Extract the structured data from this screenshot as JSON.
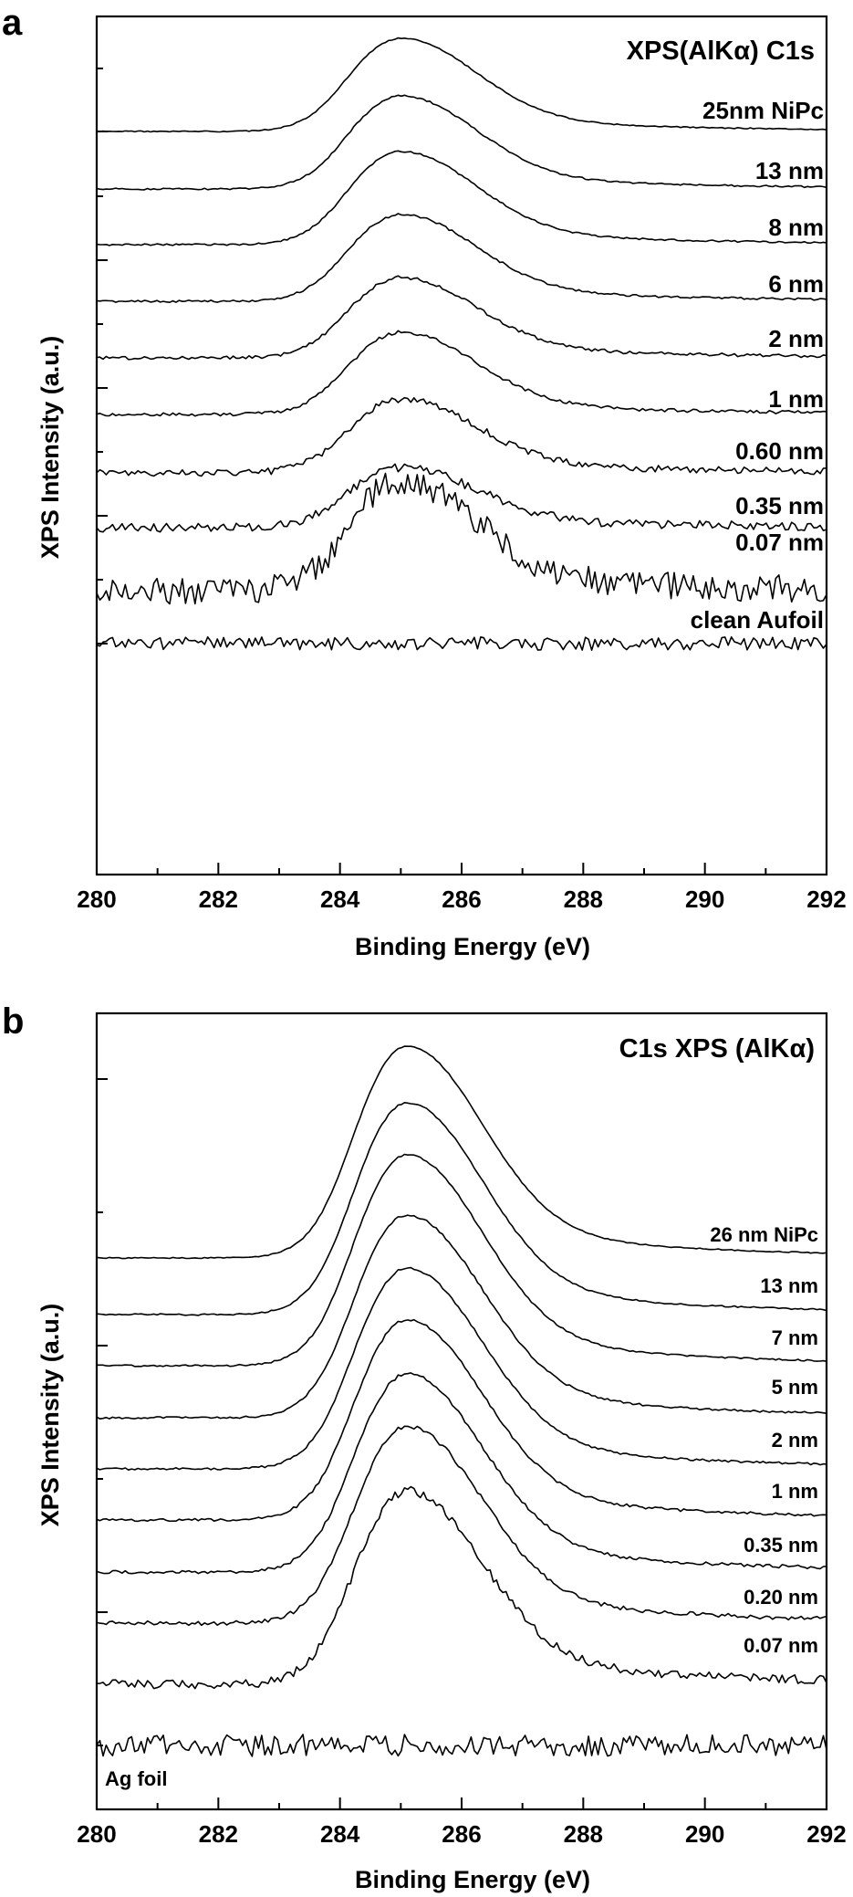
{
  "chart_data": [
    {
      "panel_label": "a",
      "type": "line",
      "title": "XPS(AlKα) C1s",
      "xlabel": "Binding Energy (eV)",
      "ylabel": "XPS Intensity (a.u.)",
      "xlim": [
        280,
        292
      ],
      "xticks": [
        "280",
        "282",
        "284",
        "286",
        "288",
        "290",
        "292"
      ],
      "peak_eV": 285.0,
      "series": [
        {
          "name": "25nm NiPc",
          "amp": 1.0,
          "noise": 0.01
        },
        {
          "name": "13 nm",
          "amp": 1.0,
          "noise": 0.015
        },
        {
          "name": "8 nm",
          "amp": 1.0,
          "noise": 0.015
        },
        {
          "name": "6 nm",
          "amp": 0.95,
          "noise": 0.02
        },
        {
          "name": "2 nm",
          "amp": 0.9,
          "noise": 0.03
        },
        {
          "name": "1 nm",
          "amp": 0.9,
          "noise": 0.03
        },
        {
          "name": "0.60 nm",
          "amp": 0.85,
          "noise": 0.06
        },
        {
          "name": "0.35 nm",
          "amp": 0.75,
          "noise": 0.08
        },
        {
          "name": "0.07 nm",
          "amp": 0.9,
          "noise": 0.25
        },
        {
          "name": "clean Aufoil",
          "amp": 0.0,
          "noise": 0.12
        }
      ]
    },
    {
      "panel_label": "b",
      "type": "line",
      "title": "C1s XPS (AlKα)",
      "xlabel": "Binding Energy (eV)",
      "ylabel": "XPS Intensity (a.u.)",
      "xlim": [
        280,
        292
      ],
      "xticks": [
        "280",
        "282",
        "284",
        "286",
        "288",
        "290",
        "292"
      ],
      "peak_eV": 285.1,
      "series": [
        {
          "name": "26 nm NiPc",
          "amp": 1.0,
          "noise": 0.01
        },
        {
          "name": "13 nm",
          "amp": 1.0,
          "noise": 0.015
        },
        {
          "name": "7 nm",
          "amp": 1.0,
          "noise": 0.015
        },
        {
          "name": "5 nm",
          "amp": 1.0,
          "noise": 0.02
        },
        {
          "name": "2 nm",
          "amp": 1.0,
          "noise": 0.02
        },
        {
          "name": "1 nm",
          "amp": 1.0,
          "noise": 0.025
        },
        {
          "name": "0.35 nm",
          "amp": 1.0,
          "noise": 0.03
        },
        {
          "name": "0.20 nm",
          "amp": 1.0,
          "noise": 0.04
        },
        {
          "name": "0.07 nm",
          "amp": 1.0,
          "noise": 0.08
        },
        {
          "name": "Ag foil",
          "amp": 0.0,
          "noise": 0.2
        }
      ]
    }
  ]
}
